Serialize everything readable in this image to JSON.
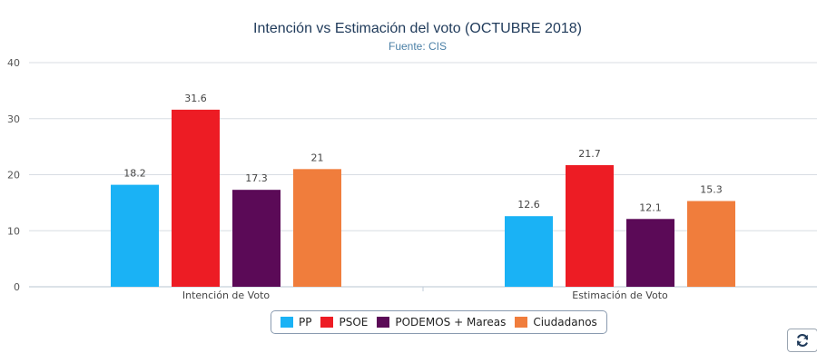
{
  "chart_data": {
    "type": "bar",
    "title": "Intención vs Estimación del voto (OCTUBRE 2018)",
    "subtitle": "Fuente: CIS",
    "categories": [
      "Intención de Voto",
      "Estimación de Voto"
    ],
    "ylim": [
      0,
      40
    ],
    "yticks": [
      0,
      10,
      20,
      30,
      40
    ],
    "grid": true,
    "legend_position": "bottom-center",
    "series": [
      {
        "name": "PP",
        "color": "#1ab2f5",
        "values": [
          18.2,
          12.6
        ]
      },
      {
        "name": "PSOE",
        "color": "#ed1c24",
        "values": [
          31.6,
          21.7
        ]
      },
      {
        "name": "PODEMOS + Mareas",
        "color": "#5b0a57",
        "values": [
          17.3,
          12.1
        ]
      },
      {
        "name": "Ciudadanos",
        "color": "#f07d3c",
        "values": [
          21,
          15.3
        ]
      }
    ]
  },
  "controls": {
    "refresh_icon": "refresh-icon"
  }
}
